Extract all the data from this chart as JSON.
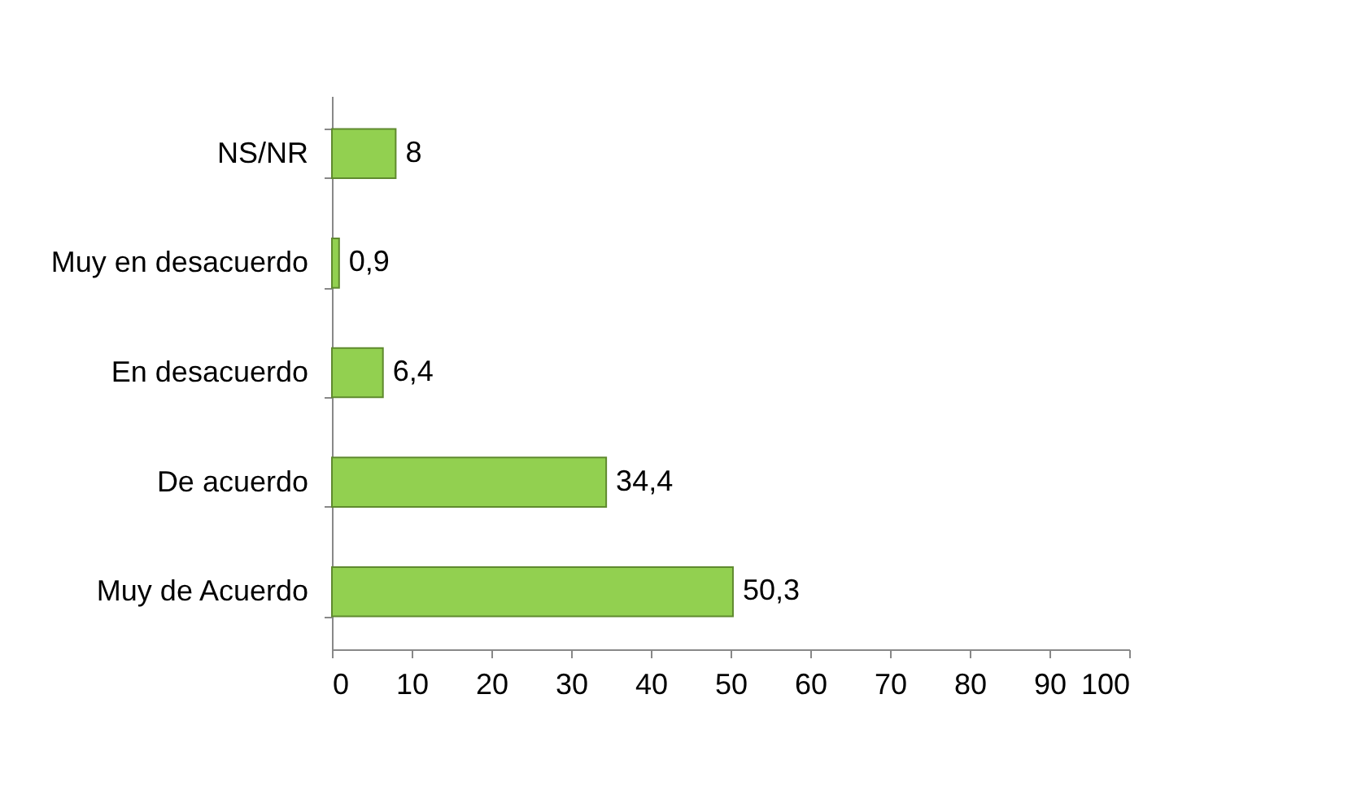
{
  "chart_data": {
    "type": "bar",
    "orientation": "horizontal",
    "categories": [
      "NS/NR",
      "Muy en desacuerdo",
      "En desacuerdo",
      "De acuerdo",
      "Muy de Acuerdo"
    ],
    "values": [
      8,
      0.9,
      6.4,
      34.4,
      50.3
    ],
    "value_labels": [
      "8",
      "0,9",
      "6,4",
      "34,4",
      "50,3"
    ],
    "color": "#92d050",
    "xlim": [
      0,
      100
    ],
    "xticks": [
      0,
      10,
      20,
      30,
      40,
      50,
      60,
      70,
      80,
      90,
      100
    ],
    "grid": false
  }
}
